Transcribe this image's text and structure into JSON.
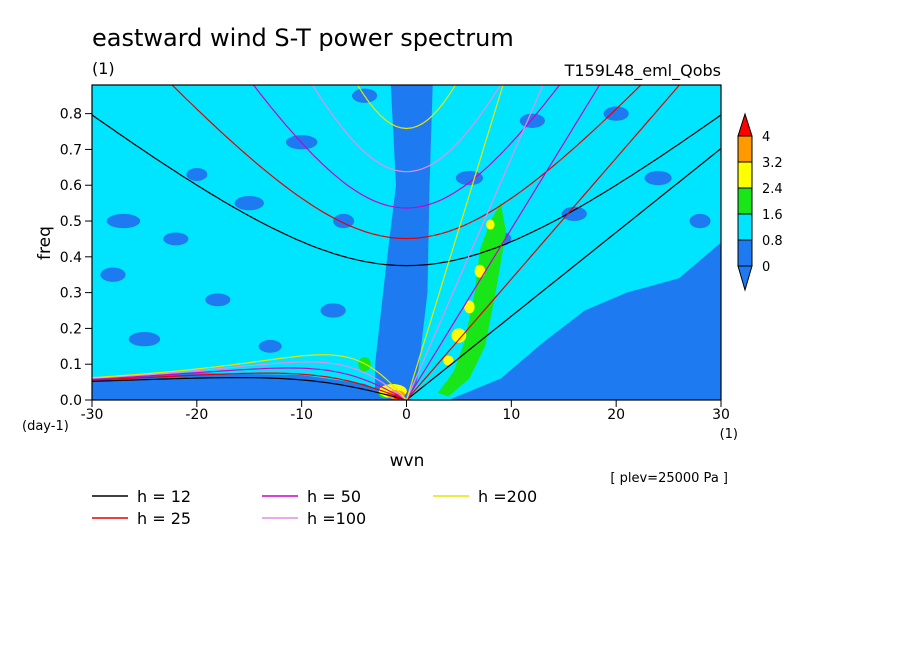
{
  "chart_data": {
    "type": "heatmap",
    "title": "eastward wind S-T power spectrum",
    "title_units": "(1)",
    "run_label": "T159L48_eml_Qobs",
    "xlabel": "wvn",
    "x_units": "(1)",
    "ylabel": "freq",
    "y_units": "(day-1)",
    "level_note": "[ plev=25000 Pa ]",
    "xlim": [
      -30,
      30
    ],
    "ylim": [
      0,
      0.88
    ],
    "x_ticks": [
      "-30",
      "-20",
      "-10",
      "0",
      "10",
      "20",
      "30"
    ],
    "y_ticks": [
      "0.0",
      "0.1",
      "0.2",
      "0.3",
      "0.4",
      "0.5",
      "0.6",
      "0.7",
      "0.8"
    ],
    "colorbar": {
      "levels": [
        "0",
        "0.8",
        "1.6",
        "2.4",
        "3.2",
        "4"
      ],
      "colors": [
        "#1e7af0",
        "#00e5ff",
        "#19e619",
        "#ffff00",
        "#ff9900",
        "#ff0000"
      ],
      "extend": "both"
    },
    "series": [
      {
        "name": "h = 12",
        "h": 12,
        "color": "#000000"
      },
      {
        "name": "h = 25",
        "h": 25,
        "color": "#e60000"
      },
      {
        "name": "h = 50",
        "h": 50,
        "color": "#cc00cc"
      },
      {
        "name": "h =100",
        "h": 100,
        "color": "#e68ce6"
      },
      {
        "name": "h =200",
        "h": 200,
        "color": "#e6e600"
      }
    ],
    "legend_placement": "bottom"
  }
}
